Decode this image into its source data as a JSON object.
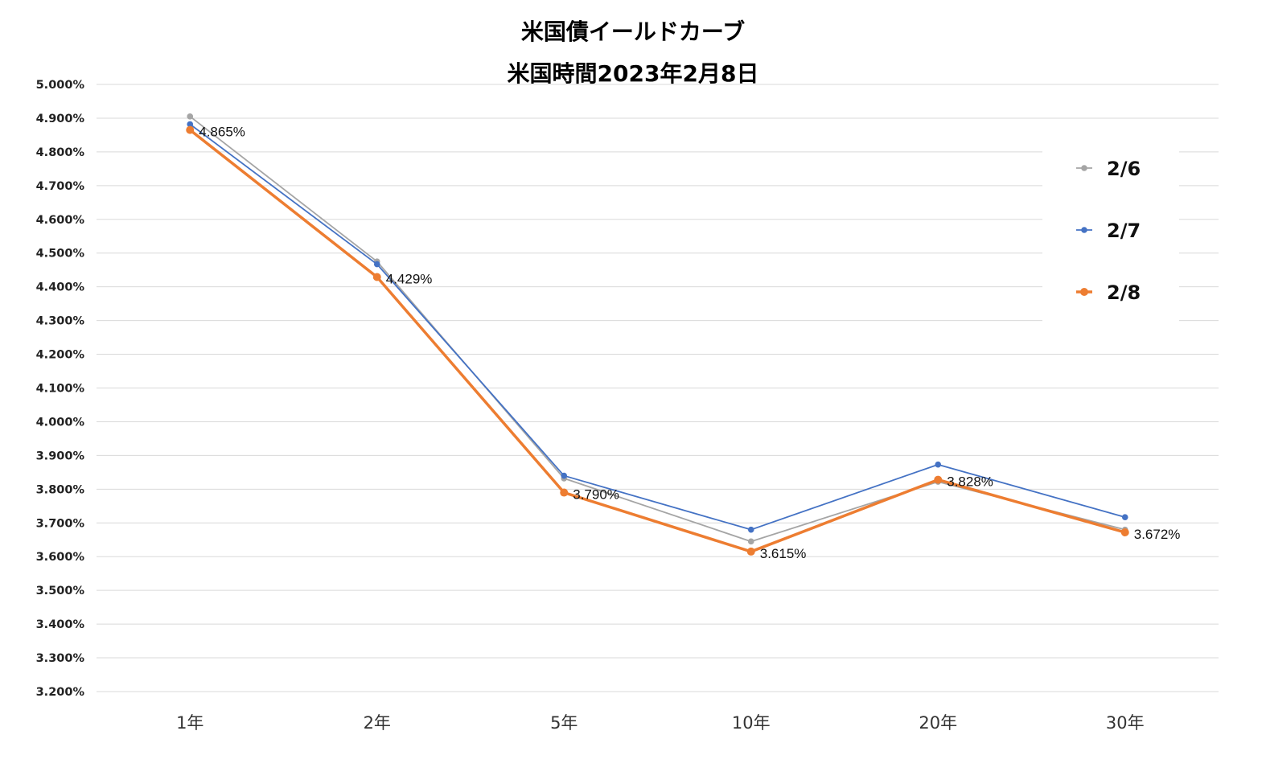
{
  "chart_data": {
    "type": "line",
    "title": "米国債イールドカーブ",
    "subtitle": "米国時間2023年2月8日",
    "categories": [
      "1年",
      "2年",
      "5年",
      "10年",
      "20年",
      "30年"
    ],
    "y_ticks": [
      "5.000%",
      "4.900%",
      "4.800%",
      "4.700%",
      "4.600%",
      "4.500%",
      "4.400%",
      "4.300%",
      "4.200%",
      "4.100%",
      "4.000%",
      "3.900%",
      "3.800%",
      "3.700%",
      "3.600%",
      "3.500%",
      "3.400%",
      "3.300%",
      "3.200%"
    ],
    "ylim": [
      3.2,
      5.0
    ],
    "grid": true,
    "legend_position": "right",
    "series": [
      {
        "name": "2/6",
        "color": "#A5A5A5",
        "values": [
          4.905,
          4.475,
          3.832,
          3.645,
          3.822,
          3.68
        ]
      },
      {
        "name": "2/7",
        "color": "#4472C4",
        "values": [
          4.882,
          4.467,
          3.84,
          3.68,
          3.873,
          3.717
        ]
      },
      {
        "name": "2/8",
        "color": "#ED7D31",
        "values": [
          4.865,
          4.429,
          3.79,
          3.615,
          3.828,
          3.672
        ]
      }
    ],
    "data_labels": [
      "4.865%",
      "4.429%",
      "3.790%",
      "3.615%",
      "3.828%",
      "3.672%"
    ]
  }
}
